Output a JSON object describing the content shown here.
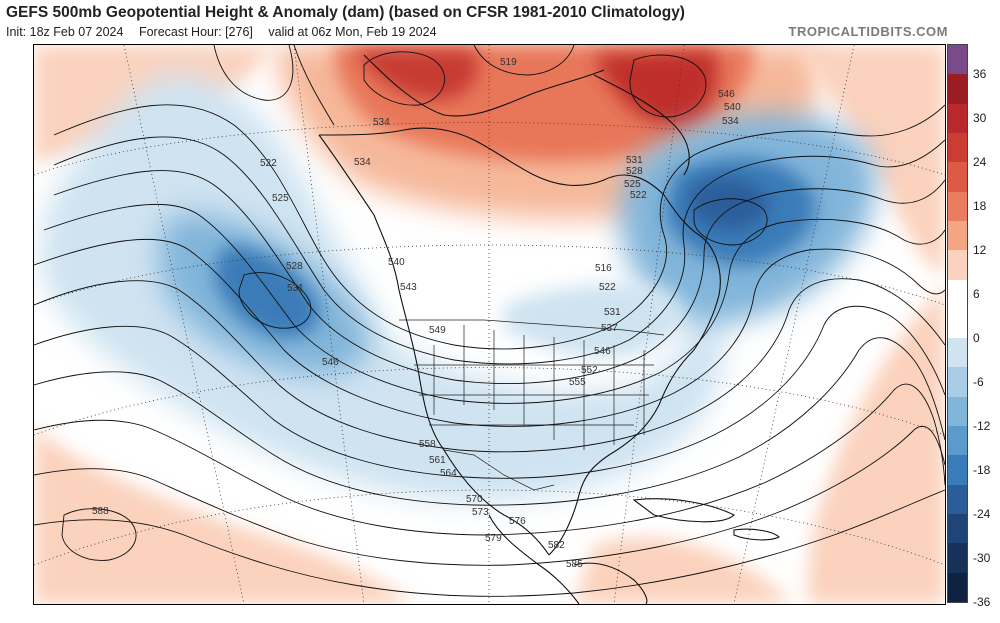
{
  "header": {
    "title": "GEFS 500mb Geopotential Height & Anomaly (dam) (based on CFSR 1981-2010 Climatology)",
    "init": "Init: 18z Feb 07 2024",
    "forecast_hour": "Forecast Hour: [276]",
    "valid": "valid at 06z Mon, Feb 19 2024",
    "brand": "TROPICALTIDBITS.COM"
  },
  "colorbar": {
    "labels": [
      "36",
      "30",
      "24",
      "18",
      "12",
      "6",
      "0",
      "-6",
      "-12",
      "-18",
      "-24",
      "-30",
      "-36"
    ],
    "colors": [
      "#7b4a8a",
      "#9c1c24",
      "#b8282c",
      "#cc3c33",
      "#dd5b45",
      "#ea7d5f",
      "#f4a584",
      "#fbd2bd",
      "#ffffff",
      "#ffffff",
      "#cfe3f1",
      "#a9cde6",
      "#82b5da",
      "#5b9acb",
      "#3a7cb8",
      "#2a5d9a",
      "#1f4577",
      "#16315a",
      "#0f2241"
    ]
  },
  "map": {
    "contour_labels": [
      "519",
      "534",
      "522",
      "525",
      "528",
      "531",
      "534",
      "540",
      "543",
      "549",
      "546",
      "552",
      "555",
      "558",
      "561",
      "564",
      "570",
      "573",
      "576",
      "579",
      "582",
      "585",
      "588",
      "546",
      "540",
      "534",
      "531",
      "528",
      "525",
      "522",
      "516",
      "522",
      "531",
      "537",
      "546"
    ]
  }
}
